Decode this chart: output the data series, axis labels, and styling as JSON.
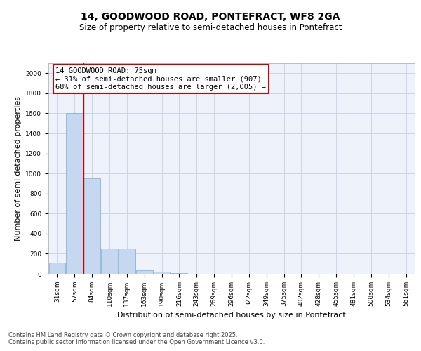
{
  "title1": "14, GOODWOOD ROAD, PONTEFRACT, WF8 2GA",
  "title2": "Size of property relative to semi-detached houses in Pontefract",
  "xlabel": "Distribution of semi-detached houses by size in Pontefract",
  "ylabel": "Number of semi-detached properties",
  "categories": [
    "31sqm",
    "57sqm",
    "84sqm",
    "110sqm",
    "137sqm",
    "163sqm",
    "190sqm",
    "216sqm",
    "243sqm",
    "269sqm",
    "296sqm",
    "322sqm",
    "349sqm",
    "375sqm",
    "402sqm",
    "428sqm",
    "455sqm",
    "481sqm",
    "508sqm",
    "534sqm",
    "561sqm"
  ],
  "values": [
    110,
    1600,
    950,
    255,
    255,
    35,
    20,
    10,
    0,
    0,
    0,
    0,
    0,
    0,
    0,
    0,
    0,
    0,
    0,
    0,
    0
  ],
  "bar_color": "#c5d8f0",
  "bar_edge_color": "#7aabcf",
  "grid_color": "#c8d0e0",
  "background_color": "#eef2fb",
  "vline_color": "#cc0000",
  "vline_x": 1.5,
  "annotation_title": "14 GOODWOOD ROAD: 75sqm",
  "annotation_line1": "← 31% of semi-detached houses are smaller (907)",
  "annotation_line2": "68% of semi-detached houses are larger (2,005) →",
  "annotation_box_edgecolor": "#cc0000",
  "ylim": [
    0,
    2100
  ],
  "yticks": [
    0,
    200,
    400,
    600,
    800,
    1000,
    1200,
    1400,
    1600,
    1800,
    2000
  ],
  "footer1": "Contains HM Land Registry data © Crown copyright and database right 2025.",
  "footer2": "Contains public sector information licensed under the Open Government Licence v3.0.",
  "title_fontsize": 10,
  "subtitle_fontsize": 8.5,
  "tick_fontsize": 6.5,
  "ylabel_fontsize": 8,
  "xlabel_fontsize": 8,
  "footer_fontsize": 6,
  "ann_fontsize": 7.5
}
